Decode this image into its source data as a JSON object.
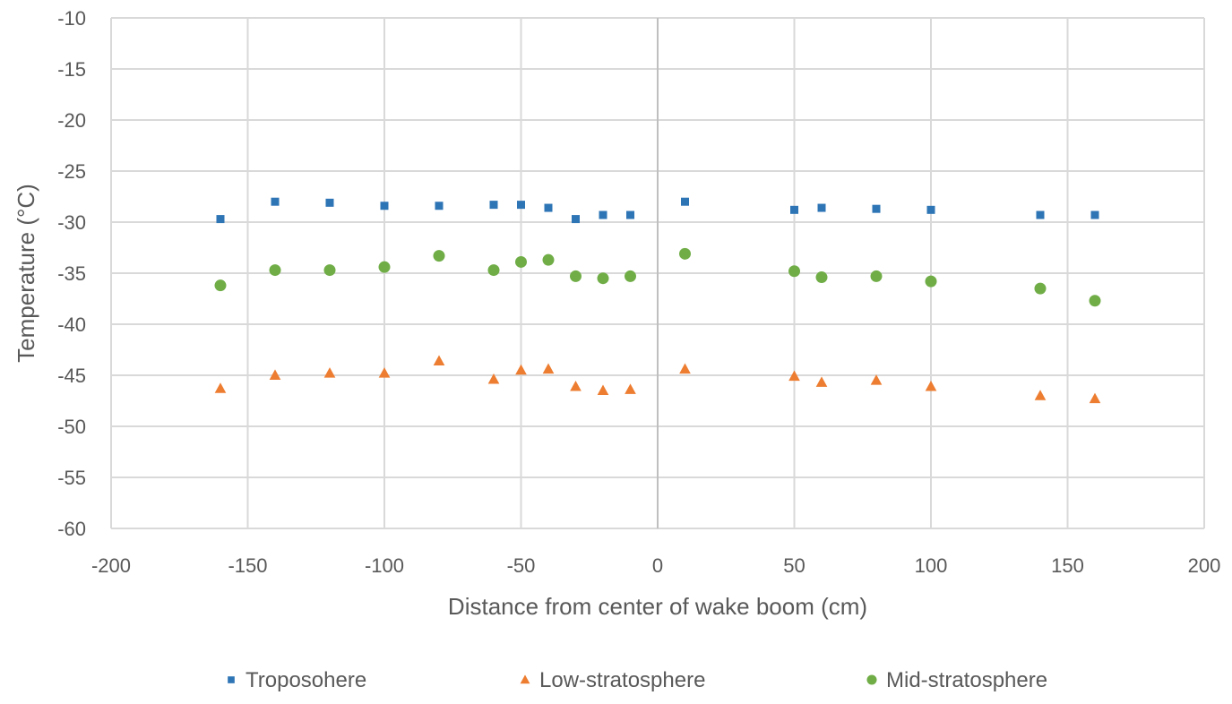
{
  "chart_data": {
    "type": "scatter",
    "title": "",
    "xlabel": "Distance from center of wake boom (cm)",
    "ylabel": "Temperature (°C)",
    "xlim": [
      -200,
      200
    ],
    "ylim": [
      -60,
      -10
    ],
    "xticks": [
      -200,
      -150,
      -100,
      -50,
      0,
      50,
      100,
      150,
      200
    ],
    "yticks": [
      -10,
      -15,
      -20,
      -25,
      -30,
      -35,
      -40,
      -45,
      -50,
      -55,
      -60
    ],
    "grid": true,
    "legend_position": "bottom",
    "series": [
      {
        "name": "Troposohere",
        "marker": "square",
        "color": "#2e75b6",
        "points": [
          {
            "x": -160,
            "y": -29.7
          },
          {
            "x": -140,
            "y": -28.0
          },
          {
            "x": -120,
            "y": -28.1
          },
          {
            "x": -100,
            "y": -28.4
          },
          {
            "x": -80,
            "y": -28.4
          },
          {
            "x": -60,
            "y": -28.3
          },
          {
            "x": -50,
            "y": -28.3
          },
          {
            "x": -40,
            "y": -28.6
          },
          {
            "x": -30,
            "y": -29.7
          },
          {
            "x": -20,
            "y": -29.3
          },
          {
            "x": -10,
            "y": -29.3
          },
          {
            "x": 10,
            "y": -28.0
          },
          {
            "x": 50,
            "y": -28.8
          },
          {
            "x": 60,
            "y": -28.6
          },
          {
            "x": 80,
            "y": -28.7
          },
          {
            "x": 100,
            "y": -28.8
          },
          {
            "x": 140,
            "y": -29.3
          },
          {
            "x": 160,
            "y": -29.3
          }
        ]
      },
      {
        "name": "Low-stratosphere",
        "marker": "triangle",
        "color": "#ed7d31",
        "points": [
          {
            "x": -160,
            "y": -46.3
          },
          {
            "x": -140,
            "y": -45.0
          },
          {
            "x": -120,
            "y": -44.8
          },
          {
            "x": -100,
            "y": -44.8
          },
          {
            "x": -80,
            "y": -43.6
          },
          {
            "x": -60,
            "y": -45.4
          },
          {
            "x": -50,
            "y": -44.5
          },
          {
            "x": -40,
            "y": -44.4
          },
          {
            "x": -30,
            "y": -46.1
          },
          {
            "x": -20,
            "y": -46.5
          },
          {
            "x": -10,
            "y": -46.4
          },
          {
            "x": 10,
            "y": -44.4
          },
          {
            "x": 50,
            "y": -45.1
          },
          {
            "x": 60,
            "y": -45.7
          },
          {
            "x": 80,
            "y": -45.5
          },
          {
            "x": 100,
            "y": -46.1
          },
          {
            "x": 140,
            "y": -47.0
          },
          {
            "x": 160,
            "y": -47.3
          }
        ]
      },
      {
        "name": "Mid-stratosphere",
        "marker": "circle",
        "color": "#70ad47",
        "points": [
          {
            "x": -160,
            "y": -36.2
          },
          {
            "x": -140,
            "y": -34.7
          },
          {
            "x": -120,
            "y": -34.7
          },
          {
            "x": -100,
            "y": -34.4
          },
          {
            "x": -80,
            "y": -33.3
          },
          {
            "x": -60,
            "y": -34.7
          },
          {
            "x": -50,
            "y": -33.9
          },
          {
            "x": -40,
            "y": -33.7
          },
          {
            "x": -30,
            "y": -35.3
          },
          {
            "x": -20,
            "y": -35.5
          },
          {
            "x": -10,
            "y": -35.3
          },
          {
            "x": 10,
            "y": -33.1
          },
          {
            "x": 50,
            "y": -34.8
          },
          {
            "x": 60,
            "y": -35.4
          },
          {
            "x": 80,
            "y": -35.3
          },
          {
            "x": 100,
            "y": -35.8
          },
          {
            "x": 140,
            "y": -36.5
          },
          {
            "x": 160,
            "y": -37.7
          }
        ]
      }
    ]
  }
}
